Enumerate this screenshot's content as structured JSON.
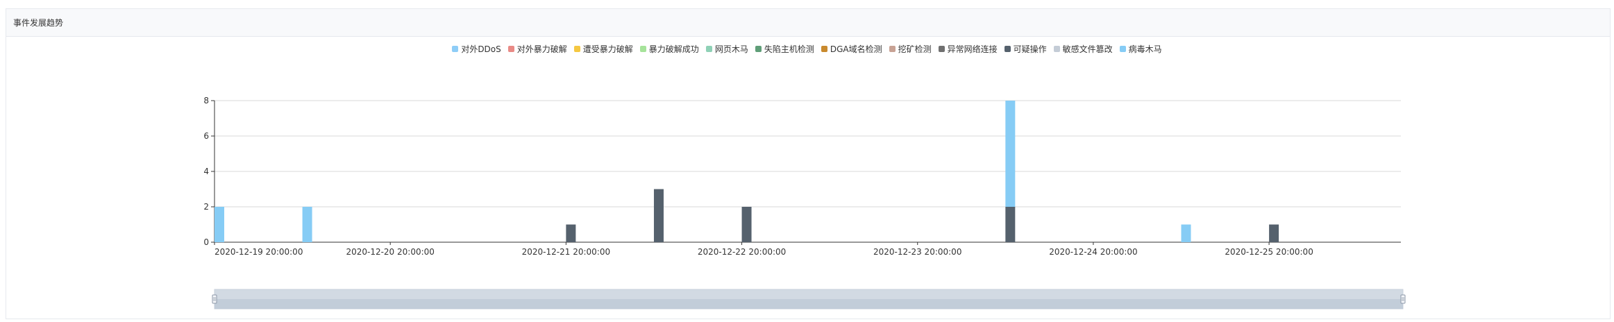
{
  "panel": {
    "title": "事件发展趋势"
  },
  "chart_data": {
    "type": "bar",
    "stacked": true,
    "grid": true,
    "legend_position": "top-center",
    "ylim": [
      0,
      8
    ],
    "y_ticks": [
      0,
      2,
      4,
      6,
      8
    ],
    "x_tick_labels": [
      "2020-12-19 20:00:00",
      "2020-12-20 20:00:00",
      "2020-12-21 20:00:00",
      "2020-12-22 20:00:00",
      "2020-12-23 20:00:00",
      "2020-12-24 20:00:00",
      "2020-12-25 20:00:00"
    ],
    "x_start": "2020-12-19 20:00:00",
    "x_end": "2020-12-26 14:00:00",
    "bin_hours": 3,
    "legend": [
      {
        "name": "对外DDoS",
        "color": "#8ecdf7"
      },
      {
        "name": "对外暴力破解",
        "color": "#e98a86"
      },
      {
        "name": "遭受暴力破解",
        "color": "#f5c842"
      },
      {
        "name": "暴力破解成功",
        "color": "#a6e39a"
      },
      {
        "name": "网页木马",
        "color": "#8fd1b6"
      },
      {
        "name": "失陷主机检测",
        "color": "#5f9e78"
      },
      {
        "name": "DGA域名检测",
        "color": "#c98a2e"
      },
      {
        "name": "挖矿检测",
        "color": "#c8a294"
      },
      {
        "name": "异常网络连接",
        "color": "#707070"
      },
      {
        "name": "可疑操作",
        "color": "#55616d"
      },
      {
        "name": "敏感文件篡改",
        "color": "#c4ccd6"
      },
      {
        "name": "病毒木马",
        "color": "#86ccf5"
      }
    ],
    "bars": [
      {
        "time": "2020-12-19 20:00:00",
        "values": {
          "病毒木马": 2
        }
      },
      {
        "time": "2020-12-20 08:00:00",
        "values": {
          "病毒木马": 2
        }
      },
      {
        "time": "2020-12-21 20:00:00",
        "values": {
          "可疑操作": 1
        }
      },
      {
        "time": "2020-12-22 08:00:00",
        "values": {
          "可疑操作": 3
        }
      },
      {
        "time": "2020-12-22 20:00:00",
        "values": {
          "可疑操作": 2
        }
      },
      {
        "time": "2020-12-24 08:00:00",
        "values": {
          "可疑操作": 2,
          "病毒木马": 6
        }
      },
      {
        "time": "2020-12-25 08:00:00",
        "values": {
          "病毒木马": 1
        }
      },
      {
        "time": "2020-12-25 20:00:00",
        "values": {
          "可疑操作": 1
        }
      }
    ]
  },
  "zoom_slider": {
    "start_percent": 0,
    "end_percent": 100
  }
}
